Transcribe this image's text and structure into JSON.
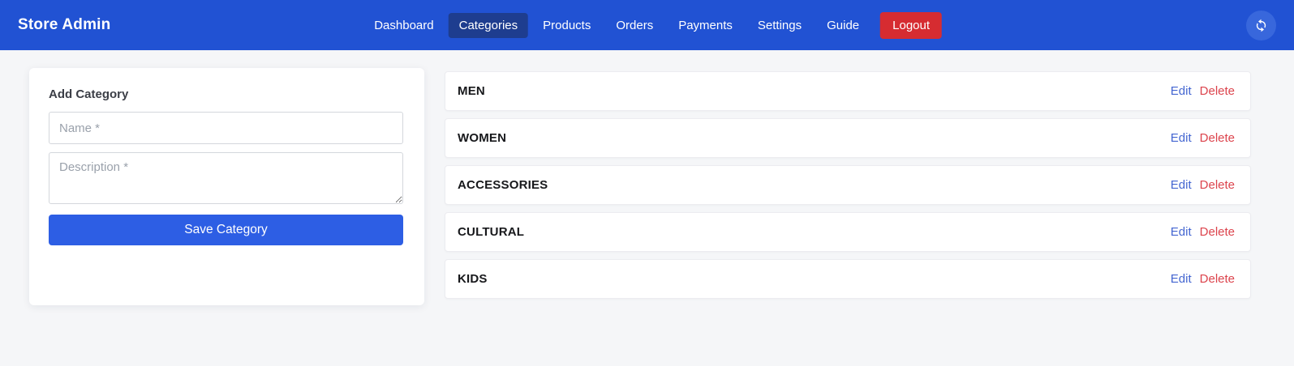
{
  "brand": "Store Admin",
  "nav": {
    "items": [
      {
        "label": "Dashboard",
        "active": false
      },
      {
        "label": "Categories",
        "active": true
      },
      {
        "label": "Products",
        "active": false
      },
      {
        "label": "Orders",
        "active": false
      },
      {
        "label": "Payments",
        "active": false
      },
      {
        "label": "Settings",
        "active": false
      },
      {
        "label": "Guide",
        "active": false
      }
    ],
    "logout_label": "Logout",
    "refresh_icon": "refresh-arrows"
  },
  "form": {
    "title": "Add Category",
    "name_placeholder": "Name *",
    "name_value": "",
    "description_placeholder": "Description *",
    "description_value": "",
    "save_label": "Save Category"
  },
  "list_actions": {
    "edit": "Edit",
    "delete": "Delete"
  },
  "categories": [
    {
      "name": "MEN"
    },
    {
      "name": "WOMEN"
    },
    {
      "name": "ACCESSORIES"
    },
    {
      "name": "CULTURAL"
    },
    {
      "name": "KIDS"
    }
  ],
  "colors": {
    "navbar_blue": "#2152d3",
    "active_nav_blue": "#1e3d8f",
    "logout_red": "#d62c31",
    "refresh_button_blue": "#3867dc",
    "save_button_blue": "#2d5ee4",
    "edit_link_blue": "#4466d1",
    "delete_link_red": "#dc444d",
    "page_background": "#f5f6f8"
  }
}
